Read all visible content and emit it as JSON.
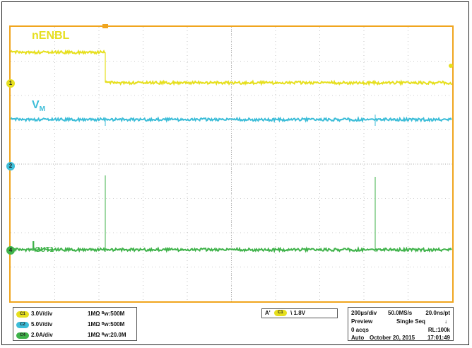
{
  "channels": [
    {
      "id": "C1",
      "scale": "3.0V/div",
      "impedance": "1MΩ ᴮw:500M",
      "color": "#e6df1e"
    },
    {
      "id": "C2",
      "scale": "5.0V/div",
      "impedance": "1MΩ ᴮw:500M",
      "color": "#3cbdd8"
    },
    {
      "id": "C4",
      "scale": "2.0A/div",
      "impedance": "1MΩ ᴮw:20.0M",
      "color": "#3fb24a"
    }
  ],
  "traces": {
    "nenbl": {
      "label": "nENBL"
    },
    "vm": {
      "label": "V",
      "sub": "M"
    },
    "iout": {
      "label": "I",
      "sub": "OUT1"
    }
  },
  "markers": {
    "ch1": "1",
    "ch2": "2",
    "ch4": "4"
  },
  "trigger": {
    "mode_icon": "A'",
    "channel": "C1",
    "slope": "\\",
    "level": "1.8V"
  },
  "acquisition": {
    "timebase": "200µs/div",
    "sample_rate": "50.0MS/s",
    "resolution": "20.0ns/pt",
    "state": "Preview",
    "seq_mode": "Single Seq",
    "acqs": "0 acqs",
    "record_length": "RL:100k",
    "trigger_mode": "Auto",
    "date": "October 20, 2015",
    "time": "17:01:49"
  }
}
